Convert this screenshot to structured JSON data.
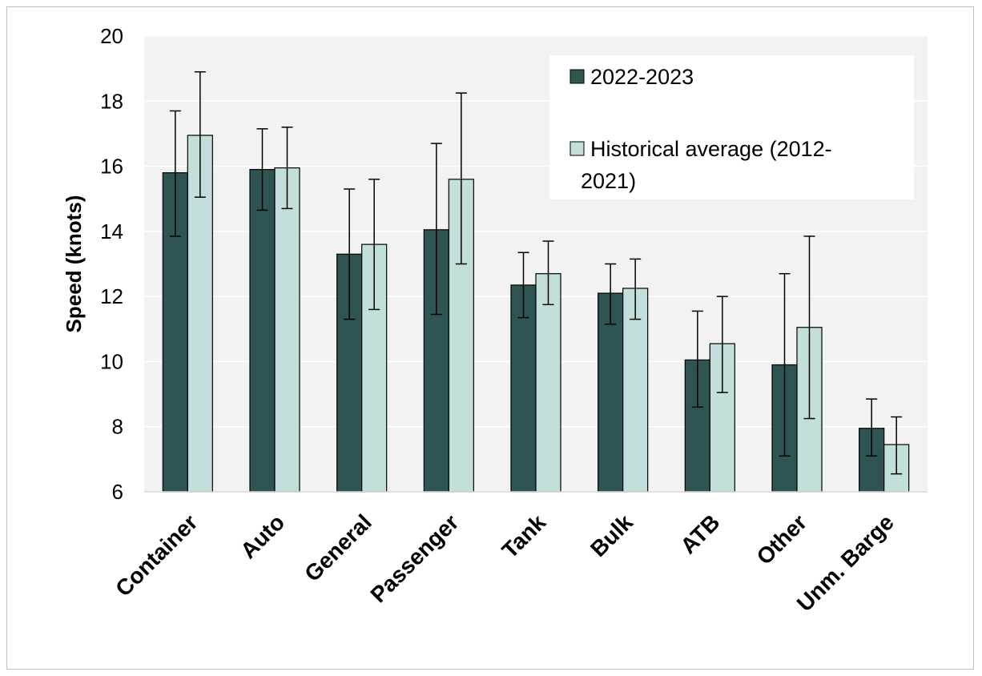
{
  "chart_data": {
    "type": "bar",
    "title": "",
    "xlabel": "",
    "ylabel": "Speed (knots)",
    "ylim": [
      6,
      20
    ],
    "yticks": [
      6,
      8,
      10,
      12,
      14,
      16,
      18,
      20
    ],
    "grid": true,
    "legend_position": "top-right",
    "categories": [
      "Container",
      "Auto",
      "General",
      "Passenger",
      "Tank",
      "Bulk",
      "ATB",
      "Other",
      "Unm. Barge"
    ],
    "series": [
      {
        "name": "2022-2023",
        "color": "#2f5552",
        "values": [
          15.8,
          15.9,
          13.3,
          14.05,
          12.35,
          12.1,
          10.05,
          9.9,
          7.95
        ],
        "error_low": [
          13.85,
          14.65,
          11.3,
          11.45,
          11.35,
          11.15,
          8.6,
          7.1,
          7.1
        ],
        "error_high": [
          17.7,
          17.15,
          15.3,
          16.7,
          13.35,
          13.0,
          11.55,
          12.7,
          8.85
        ]
      },
      {
        "name": "Historical average (2012-2021)",
        "legend_lines": [
          "Historical average (2012-",
          "2021)"
        ],
        "color": "#c2dfdc",
        "values": [
          16.95,
          15.95,
          13.6,
          15.6,
          12.7,
          12.25,
          10.55,
          11.05,
          7.45
        ],
        "error_low": [
          15.05,
          14.7,
          11.6,
          13.0,
          11.75,
          11.3,
          9.05,
          8.25,
          6.55
        ],
        "error_high": [
          18.9,
          17.2,
          15.6,
          18.25,
          13.7,
          13.15,
          12.0,
          13.85,
          8.3
        ]
      }
    ],
    "colors": {
      "plot_background": "#f2f2f2",
      "gridline": "#ffffff",
      "axis": "#d9d9d9",
      "bar_border": "#000000"
    }
  }
}
